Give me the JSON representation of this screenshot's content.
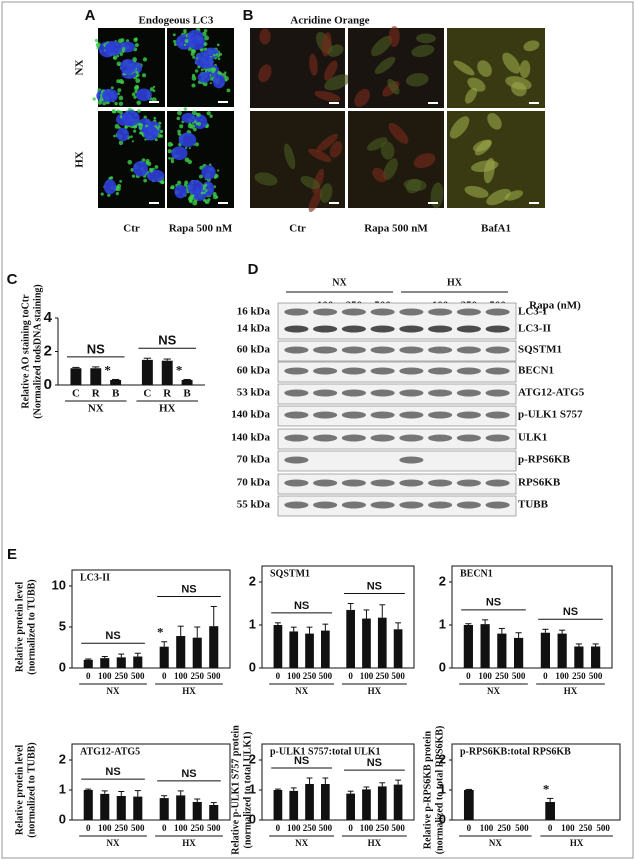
{
  "figure": {
    "panel_a": {
      "label": "A",
      "title": "Endogeous LC3",
      "rows": [
        "NX",
        "HX"
      ],
      "columns": [
        "Ctr",
        "Rapa 500 nM"
      ]
    },
    "panel_b": {
      "label": "B",
      "title": "Acridine Orange",
      "columns": [
        "Ctr",
        "Rapa 500 nM",
        "BafA1"
      ]
    },
    "panel_c_label": "C",
    "panel_d": {
      "label": "D",
      "groups": [
        "NX",
        "HX"
      ],
      "lanes": [
        "-",
        "100",
        "250",
        "500",
        "-",
        "100",
        "250",
        "500"
      ],
      "lane_axis": "Rapa (nM)",
      "rows": [
        {
          "size": "16 kDa",
          "name": "LC3-I"
        },
        {
          "size": "14 kDa",
          "name": "LC3-II"
        },
        {
          "size": "60 kDa",
          "name": "SQSTM1"
        },
        {
          "size": "60 kDa",
          "name": "BECN1"
        },
        {
          "size": "53 kDa",
          "name": "ATG12-ATG5"
        },
        {
          "size": "140 kDa",
          "name": "p-ULK1 S757"
        },
        {
          "size": "140 kDa",
          "name": "ULK1"
        },
        {
          "size": "70 kDa",
          "name": "p-RPS6KB"
        },
        {
          "size": "70 kDa",
          "name": "RPS6KB"
        },
        {
          "size": "55 kDa",
          "name": "TUBB"
        }
      ]
    },
    "panel_e_label": "E"
  },
  "chart_data": [
    {
      "type": "bar",
      "ylabel": [
        "Relative AO staining toCtr",
        "(Normalized todsDNA staining)"
      ],
      "categories": [
        "C",
        "R",
        "B",
        "C",
        "R",
        "B"
      ],
      "groups": [
        "NX",
        "HX"
      ],
      "values": [
        1.0,
        1.0,
        0.3,
        1.5,
        1.45,
        0.3
      ],
      "errors": [
        0.05,
        0.08,
        0.03,
        0.1,
        0.1,
        0.03
      ],
      "group_annotations": [
        "NS",
        "NS"
      ],
      "bar_annotations": [
        null,
        null,
        "*",
        null,
        null,
        "*"
      ],
      "ylim": [
        0,
        4
      ],
      "yticks": [
        0,
        2,
        4
      ],
      "color": "#111111",
      "frame": false
    },
    {
      "type": "bar",
      "title": "LC3-II",
      "ylabel": [
        "Relative protein level",
        "(normalized to TUBB)"
      ],
      "categories": [
        "0",
        "100",
        "250",
        "500",
        "0",
        "100",
        "250",
        "500"
      ],
      "groups": [
        "NX",
        "HX"
      ],
      "values": [
        1.0,
        1.2,
        1.3,
        1.4,
        2.6,
        3.9,
        3.7,
        5.1
      ],
      "errors": [
        0.1,
        0.2,
        0.4,
        0.4,
        0.6,
        1.2,
        1.3,
        2.4
      ],
      "group_annotations": [
        "NS",
        "NS"
      ],
      "bar_annotations": [
        null,
        null,
        null,
        null,
        "*",
        null,
        null,
        null
      ],
      "ylim": [
        0,
        10
      ],
      "yticks": [
        0,
        5,
        10
      ],
      "color": "#111111",
      "frame": true
    },
    {
      "type": "bar",
      "title": "SQSTM1",
      "categories": [
        "0",
        "100",
        "250",
        "500",
        "0",
        "100",
        "250",
        "500"
      ],
      "groups": [
        "NX",
        "HX"
      ],
      "values": [
        1.0,
        0.85,
        0.8,
        0.87,
        1.35,
        1.15,
        1.17,
        0.9
      ],
      "errors": [
        0.05,
        0.1,
        0.15,
        0.15,
        0.15,
        0.2,
        0.3,
        0.15
      ],
      "group_annotations": [
        "NS",
        "NS"
      ],
      "bar_annotations": [
        null,
        null,
        null,
        null,
        null,
        null,
        null,
        null
      ],
      "ylim": [
        0,
        2
      ],
      "yticks": [
        0,
        1,
        2
      ],
      "color": "#111111",
      "frame": true
    },
    {
      "type": "bar",
      "title": "BECN1",
      "categories": [
        "0",
        "100",
        "250",
        "500",
        "0",
        "100",
        "250",
        "500"
      ],
      "groups": [
        "NX",
        "HX"
      ],
      "values": [
        1.0,
        1.02,
        0.8,
        0.7,
        0.82,
        0.8,
        0.5,
        0.5
      ],
      "errors": [
        0.03,
        0.1,
        0.12,
        0.12,
        0.08,
        0.08,
        0.06,
        0.06
      ],
      "group_annotations": [
        "NS",
        "NS"
      ],
      "bar_annotations": [
        null,
        null,
        null,
        null,
        null,
        null,
        null,
        null
      ],
      "ylim": [
        0,
        2
      ],
      "yticks": [
        0,
        1,
        2
      ],
      "color": "#111111",
      "frame": true
    },
    {
      "type": "bar",
      "title": "ATG12-ATG5",
      "ylabel": [
        "Relative protein level",
        "(normalized to TUBB)"
      ],
      "categories": [
        "0",
        "100",
        "250",
        "500",
        "0",
        "100",
        "250",
        "500"
      ],
      "groups": [
        "NX",
        "HX"
      ],
      "values": [
        1.0,
        0.87,
        0.8,
        0.78,
        0.73,
        0.82,
        0.6,
        0.5
      ],
      "errors": [
        0.03,
        0.1,
        0.15,
        0.2,
        0.08,
        0.15,
        0.1,
        0.08
      ],
      "group_annotations": [
        "NS",
        "NS"
      ],
      "bar_annotations": [
        null,
        null,
        null,
        null,
        null,
        null,
        null,
        null
      ],
      "ylim": [
        0,
        2
      ],
      "yticks": [
        0,
        1,
        2
      ],
      "color": "#111111",
      "frame": true
    },
    {
      "type": "bar",
      "title": "p-ULK1 S757:total ULK1",
      "ylabel": [
        "Relative p-ULK1 S757 protein",
        "(normalized to total ULK1)"
      ],
      "categories": [
        "0",
        "100",
        "250",
        "500",
        "0",
        "100",
        "250",
        "500"
      ],
      "groups": [
        "NX",
        "HX"
      ],
      "values": [
        1.0,
        0.97,
        1.2,
        1.2,
        0.88,
        1.02,
        1.12,
        1.18
      ],
      "errors": [
        0.03,
        0.1,
        0.2,
        0.2,
        0.08,
        0.08,
        0.12,
        0.15
      ],
      "group_annotations": [
        "NS",
        "NS"
      ],
      "bar_annotations": [
        null,
        null,
        null,
        null,
        null,
        null,
        null,
        null
      ],
      "ylim": [
        0,
        2
      ],
      "yticks": [
        0,
        1,
        2
      ],
      "color": "#111111",
      "frame": true
    },
    {
      "type": "bar",
      "title": "p-RPS6KB:total RPS6KB",
      "ylabel": [
        "Relative p-RPS6KB protein",
        "(normalized to total RPS6KB)"
      ],
      "categories": [
        "0",
        "100",
        "250",
        "500",
        "0",
        "100",
        "250",
        "500"
      ],
      "groups": [
        "NX",
        "HX"
      ],
      "values": [
        1.0,
        0,
        0,
        0,
        0.6,
        0,
        0,
        0
      ],
      "errors": [
        0.02,
        0,
        0,
        0,
        0.12,
        0,
        0,
        0
      ],
      "bar_annotations": [
        null,
        null,
        null,
        null,
        "*",
        null,
        null,
        null
      ],
      "ylim": [
        0,
        2
      ],
      "yticks": [
        0,
        1,
        2
      ],
      "color": "#111111",
      "frame": true
    }
  ]
}
